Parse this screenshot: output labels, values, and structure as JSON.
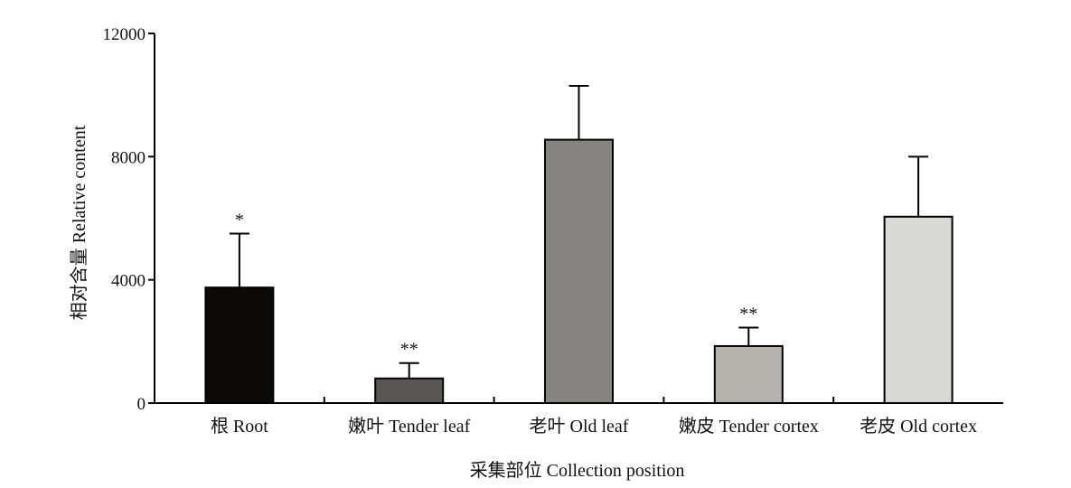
{
  "chart_data": {
    "type": "bar",
    "categories": [
      "根 Root",
      "嫩叶 Tender leaf",
      "老叶 Old leaf",
      "嫩皮 Tender cortex",
      "老皮 Old cortex"
    ],
    "values": [
      3750,
      800,
      8550,
      1850,
      6050
    ],
    "errors": [
      1750,
      500,
      1750,
      600,
      1950
    ],
    "significance": [
      "*",
      "**",
      "",
      "**",
      ""
    ],
    "colors": [
      "#0b0a09",
      "#575654",
      "#858480",
      "#b5b3ae",
      "#d8d8d6"
    ],
    "xlabel": "采集部位 Collection position",
    "ylabel": "相对含量 Relative content",
    "ylim": [
      0,
      12000
    ],
    "yticks": [
      0,
      4000,
      8000,
      12000
    ],
    "grid": false,
    "legend": "none"
  }
}
